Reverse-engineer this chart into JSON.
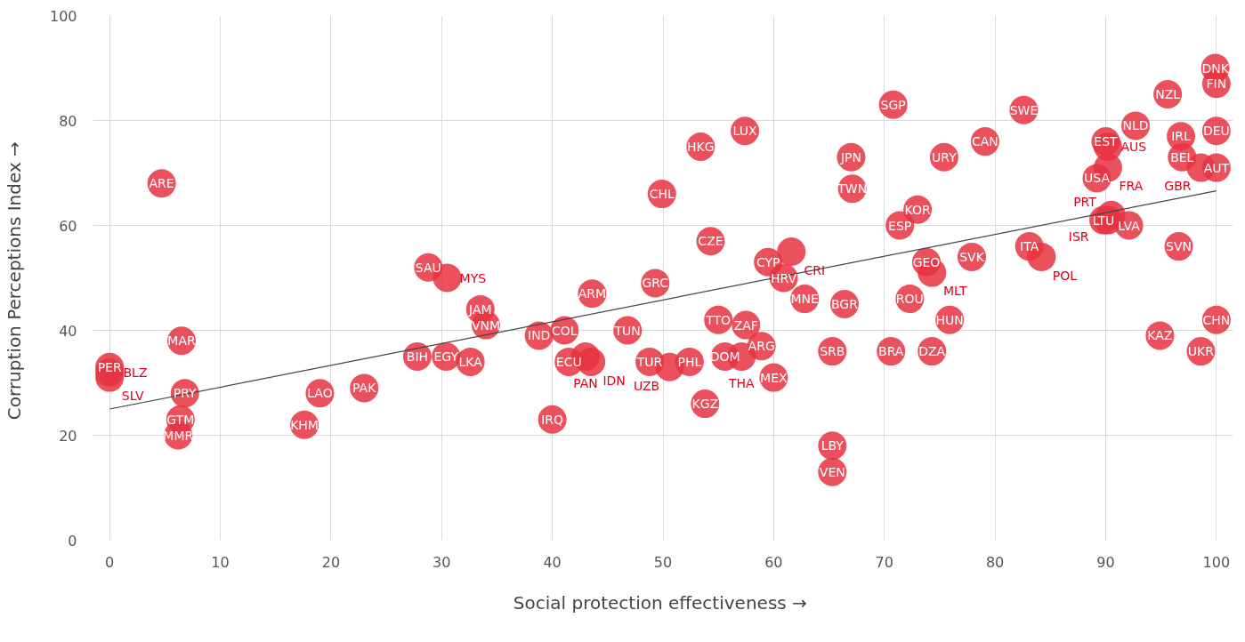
{
  "chart_data": {
    "type": "scatter",
    "xlabel": "Social protection effectiveness  →",
    "ylabel": "Corruption Perceptions Index  →",
    "xlim": [
      -1.5,
      101.5
    ],
    "ylim": [
      0,
      100
    ],
    "xticks": [
      0,
      10,
      20,
      30,
      40,
      50,
      60,
      70,
      80,
      90,
      100
    ],
    "yticks": [
      0,
      20,
      40,
      60,
      80,
      100
    ],
    "grid": true,
    "series": [
      {
        "marker": "circle",
        "color": "#e8323f",
        "x": [
          4.7,
          0,
          0,
          0,
          6.5,
          6.8,
          6.4,
          6.2,
          17.6,
          19,
          23,
          27.8,
          30.4,
          32.6,
          28.8,
          30.5,
          33.5,
          34,
          38.8,
          41.1,
          41.5,
          43,
          43.5,
          40,
          43.6,
          46.8,
          49.3,
          48.8,
          50.6,
          52.4,
          49.9,
          53.4,
          57.4,
          54.3,
          55,
          57.5,
          58.9,
          55.6,
          57.1,
          60,
          53.8,
          59.5,
          61.6,
          60.9,
          62.8,
          66.4,
          65.3,
          65.3,
          65.3,
          70.8,
          67,
          67.1,
          71.4,
          73,
          72.3,
          73.8,
          74.3,
          70.6,
          74.3,
          75.9,
          75.4,
          79.1,
          77.9,
          82.6,
          83.1,
          84.2,
          89.2,
          90,
          90.2,
          90.2,
          89.8,
          90.5,
          90.2,
          92.1,
          92.7,
          95.6,
          96.8,
          96.9,
          98.6,
          99.9,
          100,
          100,
          100,
          96.6,
          100,
          94.9,
          98.6
        ],
        "values": [
          68,
          33,
          32,
          31,
          38,
          28,
          23,
          20,
          22,
          28,
          29,
          35,
          35,
          34,
          52,
          50,
          44,
          41,
          39,
          40,
          34,
          35,
          34,
          23,
          47,
          40,
          49,
          34,
          33,
          34,
          66,
          75,
          78,
          57,
          42,
          41,
          37,
          35,
          35,
          31,
          26,
          53,
          55,
          50,
          46,
          45,
          36,
          18,
          13,
          83,
          73,
          67,
          60,
          63,
          46,
          53,
          51,
          36,
          36,
          42,
          73,
          76,
          54,
          82,
          56,
          54,
          69,
          76,
          75,
          71,
          61,
          62,
          61,
          60,
          79,
          85,
          77,
          73,
          71,
          90,
          87,
          78,
          71,
          56,
          42,
          39,
          36
        ]
      },
      {
        "type": "line",
        "color": "#444444",
        "x": [
          0,
          100
        ],
        "values": [
          25,
          66.6
        ]
      }
    ],
    "annotations": [
      {
        "text": "ARE",
        "x": 4.7,
        "y": 68
      },
      {
        "text": "PER",
        "x": 0,
        "y": 33
      },
      {
        "text": "BLZ",
        "x": 0,
        "y": 32
      },
      {
        "text": "SLV",
        "x": 0,
        "y": 31
      },
      {
        "text": "MAR",
        "x": 6.5,
        "y": 38
      },
      {
        "text": "PRY",
        "x": 6.8,
        "y": 28
      },
      {
        "text": "GTM",
        "x": 6.4,
        "y": 23
      },
      {
        "text": "MMR",
        "x": 6.2,
        "y": 20
      },
      {
        "text": "KHM",
        "x": 17.6,
        "y": 22
      },
      {
        "text": "LAO",
        "x": 19,
        "y": 28
      },
      {
        "text": "PAK",
        "x": 23,
        "y": 29
      },
      {
        "text": "BIH",
        "x": 27.8,
        "y": 35
      },
      {
        "text": "EGY",
        "x": 30.4,
        "y": 35
      },
      {
        "text": "LKA",
        "x": 32.6,
        "y": 34
      },
      {
        "text": "SAU",
        "x": 28.8,
        "y": 52
      },
      {
        "text": "MYS",
        "x": 30.5,
        "y": 50
      },
      {
        "text": "JAM",
        "x": 33.5,
        "y": 44
      },
      {
        "text": "VNM",
        "x": 34,
        "y": 41
      },
      {
        "text": "IND",
        "x": 38.8,
        "y": 39
      },
      {
        "text": "COL",
        "x": 41.1,
        "y": 40
      },
      {
        "text": "ECU",
        "x": 41.5,
        "y": 34
      },
      {
        "text": "PAN",
        "x": 43,
        "y": 35
      },
      {
        "text": "IDN",
        "x": 43.5,
        "y": 34
      },
      {
        "text": "IRQ",
        "x": 40,
        "y": 23
      },
      {
        "text": "ARM",
        "x": 43.6,
        "y": 47
      },
      {
        "text": "TUN",
        "x": 46.8,
        "y": 40
      },
      {
        "text": "GRC",
        "x": 49.3,
        "y": 49
      },
      {
        "text": "TUR",
        "x": 48.8,
        "y": 34
      },
      {
        "text": "UZB",
        "x": 50.6,
        "y": 33
      },
      {
        "text": "PHL",
        "x": 52.4,
        "y": 34
      },
      {
        "text": "CHL",
        "x": 49.9,
        "y": 66
      },
      {
        "text": "HKG",
        "x": 53.4,
        "y": 75
      },
      {
        "text": "LUX",
        "x": 57.4,
        "y": 78
      },
      {
        "text": "CZE",
        "x": 54.3,
        "y": 57
      },
      {
        "text": "TTO",
        "x": 55,
        "y": 42
      },
      {
        "text": "ZAF",
        "x": 57.5,
        "y": 41
      },
      {
        "text": "ARG",
        "x": 58.9,
        "y": 37
      },
      {
        "text": "DOM",
        "x": 55.6,
        "y": 35
      },
      {
        "text": "THA",
        "x": 57.1,
        "y": 35
      },
      {
        "text": "MEX",
        "x": 60,
        "y": 31
      },
      {
        "text": "KGZ",
        "x": 53.8,
        "y": 26
      },
      {
        "text": "CYP",
        "x": 59.5,
        "y": 53
      },
      {
        "text": "CRI",
        "x": 61.6,
        "y": 55
      },
      {
        "text": "HRV",
        "x": 60.9,
        "y": 50
      },
      {
        "text": "MNE",
        "x": 62.8,
        "y": 46
      },
      {
        "text": "BGR",
        "x": 66.4,
        "y": 45
      },
      {
        "text": "SRB",
        "x": 65.3,
        "y": 36
      },
      {
        "text": "LBY",
        "x": 65.3,
        "y": 18
      },
      {
        "text": "VEN",
        "x": 65.3,
        "y": 13
      },
      {
        "text": "SGP",
        "x": 70.8,
        "y": 83
      },
      {
        "text": "JPN",
        "x": 67,
        "y": 73
      },
      {
        "text": "TWN",
        "x": 67.1,
        "y": 67
      },
      {
        "text": "ESP",
        "x": 71.4,
        "y": 60
      },
      {
        "text": "KOR",
        "x": 73,
        "y": 63
      },
      {
        "text": "ROU",
        "x": 72.3,
        "y": 46
      },
      {
        "text": "GEO",
        "x": 73.8,
        "y": 53
      },
      {
        "text": "MLT",
        "x": 74.3,
        "y": 51
      },
      {
        "text": "BRA",
        "x": 70.6,
        "y": 36
      },
      {
        "text": "DZA",
        "x": 74.3,
        "y": 36
      },
      {
        "text": "HUN",
        "x": 75.9,
        "y": 42
      },
      {
        "text": "URY",
        "x": 75.4,
        "y": 73
      },
      {
        "text": "CAN",
        "x": 79.1,
        "y": 76
      },
      {
        "text": "SVK",
        "x": 77.9,
        "y": 54
      },
      {
        "text": "SWE",
        "x": 82.6,
        "y": 82
      },
      {
        "text": "ITA",
        "x": 83.1,
        "y": 56
      },
      {
        "text": "POL",
        "x": 84.2,
        "y": 54
      },
      {
        "text": "USA",
        "x": 89.2,
        "y": 69
      },
      {
        "text": "EST",
        "x": 90,
        "y": 76
      },
      {
        "text": "AUS",
        "x": 90.2,
        "y": 75
      },
      {
        "text": "FRA",
        "x": 90.2,
        "y": 71
      },
      {
        "text": "LTU",
        "x": 89.8,
        "y": 61
      },
      {
        "text": "ISR",
        "x": 90.5,
        "y": 62
      },
      {
        "text": "PRT",
        "x": 90.2,
        "y": 61
      },
      {
        "text": "LVA",
        "x": 92.1,
        "y": 60
      },
      {
        "text": "NLD",
        "x": 92.7,
        "y": 79
      },
      {
        "text": "NZL",
        "x": 95.6,
        "y": 85
      },
      {
        "text": "IRL",
        "x": 96.8,
        "y": 77
      },
      {
        "text": "BEL",
        "x": 96.9,
        "y": 73
      },
      {
        "text": "GBR",
        "x": 98.6,
        "y": 71
      },
      {
        "text": "DNK",
        "x": 99.9,
        "y": 90
      },
      {
        "text": "FIN",
        "x": 100,
        "y": 87
      },
      {
        "text": "DEU",
        "x": 100,
        "y": 78
      },
      {
        "text": "AUT",
        "x": 100,
        "y": 71
      },
      {
        "text": "SVN",
        "x": 96.6,
        "y": 56
      },
      {
        "text": "CHN",
        "x": 100,
        "y": 42
      },
      {
        "text": "KAZ",
        "x": 94.9,
        "y": 39
      },
      {
        "text": "UKR",
        "x": 98.6,
        "y": 36
      }
    ]
  }
}
